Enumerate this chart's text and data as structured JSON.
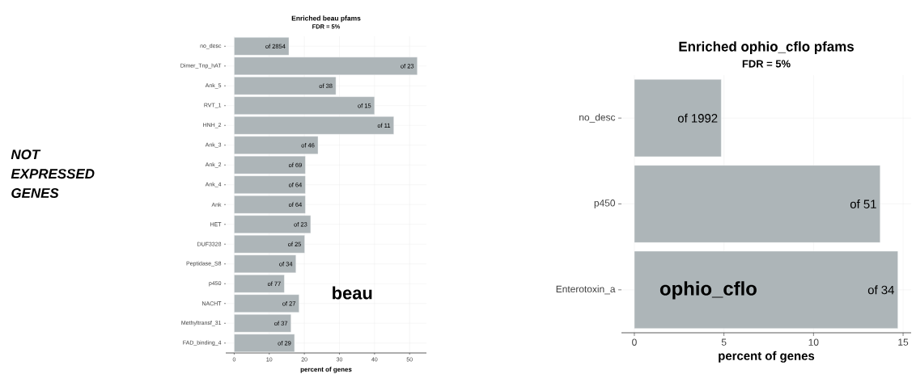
{
  "chart_data": [
    {
      "type": "bar",
      "orientation": "horizontal",
      "title": "Enriched beau pfams",
      "subtitle": "FDR = 5%",
      "xlabel": "percent of genes",
      "categories": [
        "no_desc",
        "Dimer_Tnp_hAT",
        "Ank_5",
        "RVT_1",
        "HNH_2",
        "Ank_3",
        "Ank_2",
        "Ank_4",
        "Ank",
        "HET",
        "DUF3328",
        "Peptidase_S8",
        "p450",
        "NACHT",
        "Methyltransf_31",
        "FAD_binding_4"
      ],
      "values": [
        15.6,
        52.2,
        29.0,
        40.0,
        45.5,
        23.9,
        20.3,
        20.3,
        20.3,
        21.8,
        20.1,
        17.6,
        14.3,
        18.5,
        16.2,
        17.2
      ],
      "value_labels": [
        "of 2854",
        "of 23",
        "of 38",
        "of 15",
        "of 11",
        "of 46",
        "of 69",
        "of 64",
        "of 64",
        "of 23",
        "of 25",
        "of 34",
        "of 77",
        "of 27",
        "of 37",
        "of 29"
      ],
      "color": "#adb5b8",
      "xlim": [
        -2.4,
        54.8
      ],
      "xticks": [
        0,
        10,
        20,
        30,
        40,
        50
      ],
      "grid": true,
      "annotations": [
        "NOT EXPRESSED GENES",
        "beau"
      ]
    },
    {
      "type": "bar",
      "orientation": "horizontal",
      "title": "Enriched ophio_cflo pfams",
      "subtitle": "FDR = 5%",
      "xlabel": "percent of genes",
      "categories": [
        "no_desc",
        "p450",
        "Enterotoxin_a"
      ],
      "values": [
        4.85,
        13.72,
        14.71
      ],
      "value_labels": [
        "of 1992",
        "of 51",
        "of 34"
      ],
      "color": "#adb5b8",
      "xlim": [
        -0.72,
        15.45
      ],
      "xticks": [
        0,
        5,
        10,
        15
      ],
      "grid": true,
      "annotations": [
        "ophio_cflo"
      ]
    }
  ]
}
